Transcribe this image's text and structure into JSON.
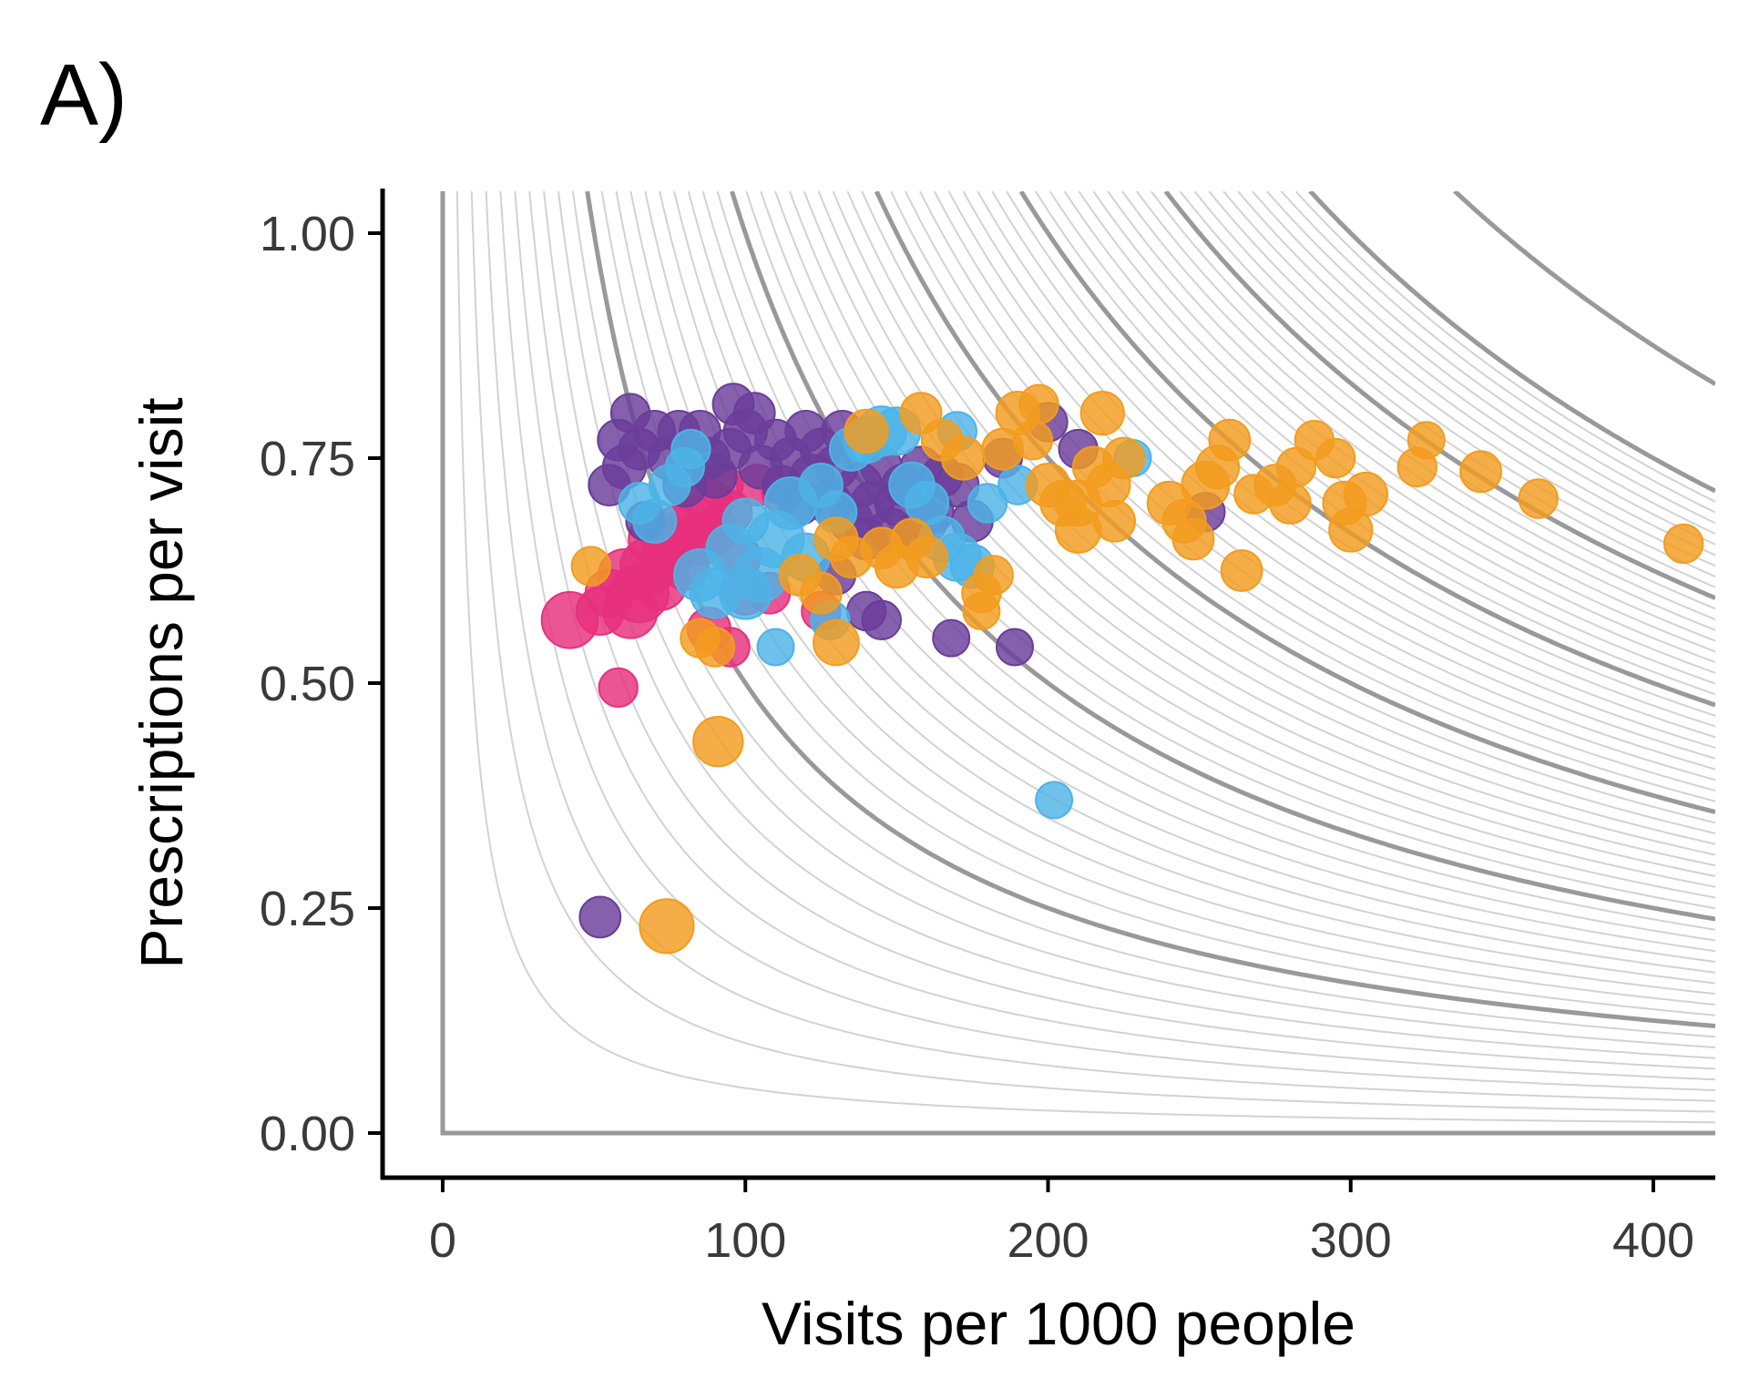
{
  "panel_label": "A)",
  "chart_data": {
    "type": "scatter",
    "xlabel": "Visits per 1000 people",
    "ylabel": "Prescriptions per visit",
    "xlim": [
      -20,
      420
    ],
    "ylim": [
      -0.05,
      1.05
    ],
    "x_ticks": [
      0,
      100,
      200,
      300,
      400
    ],
    "x_tick_labels": [
      "0",
      "100",
      "200",
      "300",
      "400"
    ],
    "y_ticks": [
      0.0,
      0.25,
      0.5,
      0.75,
      1.0
    ],
    "y_tick_labels": [
      "0.00",
      "0.25",
      "0.50",
      "0.75",
      "1.00"
    ],
    "grid": false,
    "legend": "none",
    "reference_curves": {
      "description": "iso-lines of visits × prescriptions per visit (prescriptions per 1000 people)",
      "thin_levels": [
        5,
        10,
        15,
        20,
        25,
        30,
        35,
        40,
        45,
        55,
        60,
        65,
        70,
        75,
        80,
        85,
        90,
        95,
        105,
        110,
        115,
        120,
        125,
        130,
        135,
        140,
        145,
        155,
        160,
        165,
        170,
        175,
        180,
        185,
        190,
        195,
        205,
        210,
        215,
        220,
        225,
        230,
        235,
        240,
        245,
        255,
        260,
        265,
        270,
        275,
        280,
        285,
        290,
        295
      ],
      "thick_levels": [
        0,
        50,
        100,
        150,
        200,
        250,
        300,
        350
      ],
      "thin_color": "#d2d2d2",
      "thick_color": "#999999"
    },
    "series": [
      {
        "color": "#e7307d",
        "points": [
          {
            "x": 42,
            "y": 0.57,
            "size": 1.4
          },
          {
            "x": 58,
            "y": 0.495,
            "size": 0.6
          },
          {
            "x": 52,
            "y": 0.58,
            "size": 1.0
          },
          {
            "x": 55,
            "y": 0.6,
            "size": 1.0
          },
          {
            "x": 60,
            "y": 0.62,
            "size": 1.2
          },
          {
            "x": 62,
            "y": 0.58,
            "size": 1.3
          },
          {
            "x": 65,
            "y": 0.6,
            "size": 1.5
          },
          {
            "x": 68,
            "y": 0.63,
            "size": 1.4
          },
          {
            "x": 70,
            "y": 0.66,
            "size": 1.2
          },
          {
            "x": 72,
            "y": 0.61,
            "size": 1.2
          },
          {
            "x": 75,
            "y": 0.65,
            "size": 1.3
          },
          {
            "x": 78,
            "y": 0.67,
            "size": 1.1
          },
          {
            "x": 80,
            "y": 0.63,
            "size": 1.0
          },
          {
            "x": 83,
            "y": 0.68,
            "size": 1.0
          },
          {
            "x": 85,
            "y": 0.66,
            "size": 1.2
          },
          {
            "x": 88,
            "y": 0.7,
            "size": 1.0
          },
          {
            "x": 90,
            "y": 0.67,
            "size": 0.9
          },
          {
            "x": 92,
            "y": 0.72,
            "size": 0.8
          },
          {
            "x": 95,
            "y": 0.69,
            "size": 0.8
          },
          {
            "x": 98,
            "y": 0.64,
            "size": 0.8
          },
          {
            "x": 100,
            "y": 0.6,
            "size": 0.8
          },
          {
            "x": 104,
            "y": 0.72,
            "size": 0.7
          },
          {
            "x": 108,
            "y": 0.6,
            "size": 0.7
          },
          {
            "x": 112,
            "y": 0.71,
            "size": 0.6
          },
          {
            "x": 88,
            "y": 0.56,
            "size": 0.8
          },
          {
            "x": 95,
            "y": 0.54,
            "size": 0.6
          },
          {
            "x": 125,
            "y": 0.58,
            "size": 0.6
          },
          {
            "x": 160,
            "y": 0.68,
            "size": 0.7
          }
        ]
      },
      {
        "color": "#6a3d9a",
        "points": [
          {
            "x": 52,
            "y": 0.24,
            "size": 0.7
          },
          {
            "x": 55,
            "y": 0.72,
            "size": 0.7
          },
          {
            "x": 58,
            "y": 0.77,
            "size": 0.7
          },
          {
            "x": 60,
            "y": 0.74,
            "size": 0.8
          },
          {
            "x": 62,
            "y": 0.8,
            "size": 0.6
          },
          {
            "x": 65,
            "y": 0.76,
            "size": 0.7
          },
          {
            "x": 67,
            "y": 0.68,
            "size": 0.6
          },
          {
            "x": 70,
            "y": 0.78,
            "size": 0.7
          },
          {
            "x": 75,
            "y": 0.75,
            "size": 0.8
          },
          {
            "x": 78,
            "y": 0.78,
            "size": 0.7
          },
          {
            "x": 80,
            "y": 0.72,
            "size": 0.8
          },
          {
            "x": 85,
            "y": 0.78,
            "size": 0.7
          },
          {
            "x": 88,
            "y": 0.75,
            "size": 0.7
          },
          {
            "x": 90,
            "y": 0.73,
            "size": 0.8
          },
          {
            "x": 95,
            "y": 0.76,
            "size": 0.7
          },
          {
            "x": 96,
            "y": 0.81,
            "size": 0.7
          },
          {
            "x": 100,
            "y": 0.78,
            "size": 0.8
          },
          {
            "x": 103,
            "y": 0.8,
            "size": 0.7
          },
          {
            "x": 105,
            "y": 0.74,
            "size": 0.8
          },
          {
            "x": 110,
            "y": 0.77,
            "size": 0.7
          },
          {
            "x": 112,
            "y": 0.72,
            "size": 0.6
          },
          {
            "x": 115,
            "y": 0.75,
            "size": 0.7
          },
          {
            "x": 118,
            "y": 0.7,
            "size": 0.8
          },
          {
            "x": 120,
            "y": 0.78,
            "size": 0.7
          },
          {
            "x": 122,
            "y": 0.73,
            "size": 0.8
          },
          {
            "x": 125,
            "y": 0.76,
            "size": 0.7
          },
          {
            "x": 128,
            "y": 0.7,
            "size": 0.8
          },
          {
            "x": 130,
            "y": 0.74,
            "size": 0.8
          },
          {
            "x": 132,
            "y": 0.78,
            "size": 0.7
          },
          {
            "x": 135,
            "y": 0.68,
            "size": 0.8
          },
          {
            "x": 138,
            "y": 0.72,
            "size": 0.8
          },
          {
            "x": 140,
            "y": 0.66,
            "size": 0.7
          },
          {
            "x": 142,
            "y": 0.7,
            "size": 0.8
          },
          {
            "x": 145,
            "y": 0.74,
            "size": 0.7
          },
          {
            "x": 148,
            "y": 0.67,
            "size": 0.8
          },
          {
            "x": 150,
            "y": 0.7,
            "size": 0.8
          },
          {
            "x": 152,
            "y": 0.72,
            "size": 0.7
          },
          {
            "x": 155,
            "y": 0.66,
            "size": 0.7
          },
          {
            "x": 158,
            "y": 0.74,
            "size": 0.7
          },
          {
            "x": 162,
            "y": 0.69,
            "size": 0.7
          },
          {
            "x": 165,
            "y": 0.73,
            "size": 0.7
          },
          {
            "x": 170,
            "y": 0.72,
            "size": 0.8
          },
          {
            "x": 175,
            "y": 0.68,
            "size": 0.7
          },
          {
            "x": 185,
            "y": 0.75,
            "size": 0.6
          },
          {
            "x": 200,
            "y": 0.79,
            "size": 0.6
          },
          {
            "x": 210,
            "y": 0.76,
            "size": 0.6
          },
          {
            "x": 140,
            "y": 0.58,
            "size": 0.6
          },
          {
            "x": 145,
            "y": 0.57,
            "size": 0.6
          },
          {
            "x": 168,
            "y": 0.55,
            "size": 0.5
          },
          {
            "x": 189,
            "y": 0.54,
            "size": 0.5
          },
          {
            "x": 130,
            "y": 0.62,
            "size": 0.6
          },
          {
            "x": 252,
            "y": 0.69,
            "size": 0.6
          }
        ]
      },
      {
        "color": "#4db3e6",
        "points": [
          {
            "x": 202,
            "y": 0.37,
            "size": 0.5
          },
          {
            "x": 110,
            "y": 0.54,
            "size": 0.5
          },
          {
            "x": 128,
            "y": 0.57,
            "size": 0.6
          },
          {
            "x": 65,
            "y": 0.7,
            "size": 0.7
          },
          {
            "x": 70,
            "y": 0.68,
            "size": 0.8
          },
          {
            "x": 75,
            "y": 0.72,
            "size": 0.7
          },
          {
            "x": 80,
            "y": 0.74,
            "size": 0.6
          },
          {
            "x": 85,
            "y": 0.62,
            "size": 1.2
          },
          {
            "x": 90,
            "y": 0.6,
            "size": 1.1
          },
          {
            "x": 95,
            "y": 0.65,
            "size": 1.0
          },
          {
            "x": 100,
            "y": 0.68,
            "size": 0.9
          },
          {
            "x": 105,
            "y": 0.62,
            "size": 1.3
          },
          {
            "x": 110,
            "y": 0.66,
            "size": 1.4
          },
          {
            "x": 115,
            "y": 0.7,
            "size": 1.2
          },
          {
            "x": 120,
            "y": 0.64,
            "size": 1.0
          },
          {
            "x": 125,
            "y": 0.72,
            "size": 0.8
          },
          {
            "x": 130,
            "y": 0.69,
            "size": 0.7
          },
          {
            "x": 135,
            "y": 0.76,
            "size": 0.8
          },
          {
            "x": 140,
            "y": 0.77,
            "size": 0.9
          },
          {
            "x": 145,
            "y": 0.78,
            "size": 1.1
          },
          {
            "x": 150,
            "y": 0.78,
            "size": 1.0
          },
          {
            "x": 155,
            "y": 0.72,
            "size": 0.9
          },
          {
            "x": 160,
            "y": 0.7,
            "size": 0.8
          },
          {
            "x": 165,
            "y": 0.66,
            "size": 0.9
          },
          {
            "x": 170,
            "y": 0.64,
            "size": 1.0
          },
          {
            "x": 175,
            "y": 0.63,
            "size": 0.8
          },
          {
            "x": 170,
            "y": 0.78,
            "size": 0.6
          },
          {
            "x": 180,
            "y": 0.7,
            "size": 0.6
          },
          {
            "x": 190,
            "y": 0.72,
            "size": 0.6
          },
          {
            "x": 228,
            "y": 0.75,
            "size": 0.5
          },
          {
            "x": 82,
            "y": 0.76,
            "size": 0.6
          },
          {
            "x": 100,
            "y": 0.6,
            "size": 1.2
          }
        ]
      },
      {
        "color": "#f39c1e",
        "points": [
          {
            "x": 74,
            "y": 0.23,
            "size": 1.3
          },
          {
            "x": 91,
            "y": 0.435,
            "size": 1.1
          },
          {
            "x": 49,
            "y": 0.63,
            "size": 0.6
          },
          {
            "x": 85,
            "y": 0.55,
            "size": 0.6
          },
          {
            "x": 90,
            "y": 0.54,
            "size": 0.6
          },
          {
            "x": 130,
            "y": 0.545,
            "size": 0.9
          },
          {
            "x": 118,
            "y": 0.62,
            "size": 0.7
          },
          {
            "x": 125,
            "y": 0.6,
            "size": 0.7
          },
          {
            "x": 130,
            "y": 0.66,
            "size": 0.8
          },
          {
            "x": 135,
            "y": 0.64,
            "size": 0.7
          },
          {
            "x": 145,
            "y": 0.65,
            "size": 0.7
          },
          {
            "x": 150,
            "y": 0.63,
            "size": 0.8
          },
          {
            "x": 155,
            "y": 0.66,
            "size": 0.7
          },
          {
            "x": 160,
            "y": 0.64,
            "size": 0.7
          },
          {
            "x": 140,
            "y": 0.78,
            "size": 0.8
          },
          {
            "x": 158,
            "y": 0.8,
            "size": 0.7
          },
          {
            "x": 165,
            "y": 0.77,
            "size": 0.7
          },
          {
            "x": 172,
            "y": 0.75,
            "size": 0.8
          },
          {
            "x": 178,
            "y": 0.6,
            "size": 0.6
          },
          {
            "x": 182,
            "y": 0.62,
            "size": 0.6
          },
          {
            "x": 178,
            "y": 0.58,
            "size": 0.5
          },
          {
            "x": 185,
            "y": 0.76,
            "size": 0.7
          },
          {
            "x": 190,
            "y": 0.8,
            "size": 0.8
          },
          {
            "x": 197,
            "y": 0.81,
            "size": 0.6
          },
          {
            "x": 195,
            "y": 0.77,
            "size": 0.6
          },
          {
            "x": 200,
            "y": 0.72,
            "size": 0.8
          },
          {
            "x": 205,
            "y": 0.7,
            "size": 0.9
          },
          {
            "x": 210,
            "y": 0.67,
            "size": 0.9
          },
          {
            "x": 215,
            "y": 0.74,
            "size": 0.7
          },
          {
            "x": 218,
            "y": 0.8,
            "size": 0.8
          },
          {
            "x": 220,
            "y": 0.72,
            "size": 0.8
          },
          {
            "x": 222,
            "y": 0.68,
            "size": 0.7
          },
          {
            "x": 225,
            "y": 0.75,
            "size": 0.7
          },
          {
            "x": 210,
            "y": 0.7,
            "size": 0.9
          },
          {
            "x": 240,
            "y": 0.7,
            "size": 0.8
          },
          {
            "x": 245,
            "y": 0.68,
            "size": 0.8
          },
          {
            "x": 248,
            "y": 0.66,
            "size": 0.7
          },
          {
            "x": 252,
            "y": 0.72,
            "size": 1.0
          },
          {
            "x": 256,
            "y": 0.74,
            "size": 0.8
          },
          {
            "x": 260,
            "y": 0.77,
            "size": 0.7
          },
          {
            "x": 264,
            "y": 0.625,
            "size": 0.7
          },
          {
            "x": 268,
            "y": 0.71,
            "size": 0.6
          },
          {
            "x": 275,
            "y": 0.72,
            "size": 0.7
          },
          {
            "x": 280,
            "y": 0.7,
            "size": 0.7
          },
          {
            "x": 282,
            "y": 0.74,
            "size": 0.6
          },
          {
            "x": 288,
            "y": 0.77,
            "size": 0.6
          },
          {
            "x": 295,
            "y": 0.75,
            "size": 0.6
          },
          {
            "x": 298,
            "y": 0.7,
            "size": 0.8
          },
          {
            "x": 300,
            "y": 0.67,
            "size": 0.8
          },
          {
            "x": 305,
            "y": 0.71,
            "size": 0.8
          },
          {
            "x": 322,
            "y": 0.74,
            "size": 0.6
          },
          {
            "x": 325,
            "y": 0.77,
            "size": 0.5
          },
          {
            "x": 343,
            "y": 0.735,
            "size": 0.7
          },
          {
            "x": 362,
            "y": 0.705,
            "size": 0.6
          },
          {
            "x": 410,
            "y": 0.655,
            "size": 0.6
          }
        ]
      }
    ]
  }
}
